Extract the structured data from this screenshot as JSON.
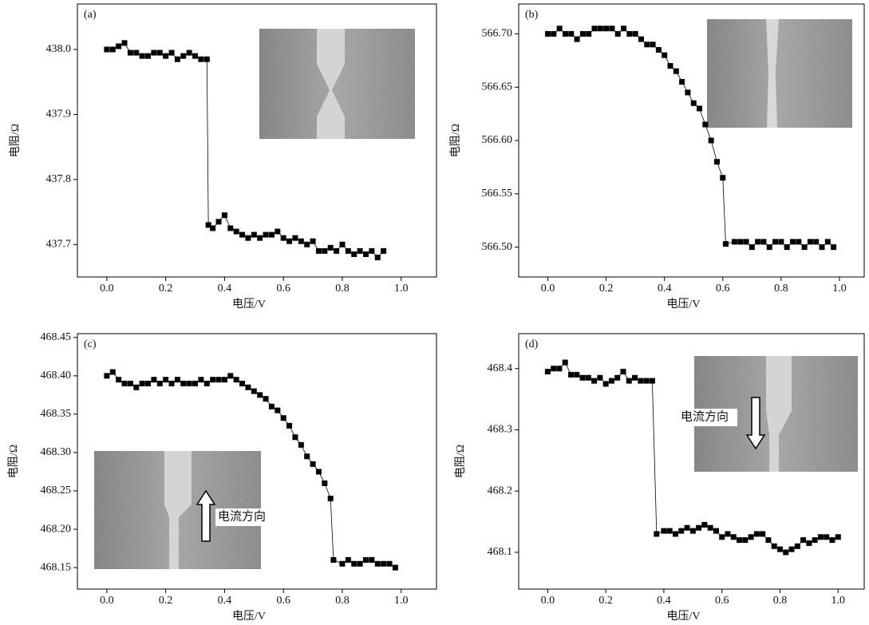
{
  "chart_data": [
    {
      "type": "scatter",
      "label": "(a)",
      "xlabel": "电压/V",
      "ylabel": "电阻/Ω",
      "x": [
        0,
        0.02,
        0.04,
        0.06,
        0.08,
        0.1,
        0.12,
        0.14,
        0.16,
        0.18,
        0.2,
        0.22,
        0.24,
        0.26,
        0.28,
        0.3,
        0.32,
        0.34,
        0.345,
        0.36,
        0.38,
        0.4,
        0.42,
        0.44,
        0.46,
        0.48,
        0.5,
        0.52,
        0.54,
        0.56,
        0.58,
        0.6,
        0.62,
        0.64,
        0.66,
        0.68,
        0.7,
        0.72,
        0.74,
        0.76,
        0.78,
        0.8,
        0.82,
        0.84,
        0.86,
        0.88,
        0.9,
        0.92,
        0.94
      ],
      "values": [
        438.0,
        438.0,
        438.005,
        438.01,
        437.995,
        437.995,
        437.99,
        437.99,
        437.995,
        437.995,
        437.99,
        437.995,
        437.985,
        437.99,
        437.995,
        437.99,
        437.985,
        437.985,
        437.73,
        437.725,
        437.735,
        437.745,
        437.725,
        437.72,
        437.715,
        437.71,
        437.715,
        437.71,
        437.715,
        437.715,
        437.72,
        437.71,
        437.705,
        437.71,
        437.705,
        437.7,
        437.705,
        437.69,
        437.69,
        437.695,
        437.69,
        437.7,
        437.69,
        437.685,
        437.69,
        437.685,
        437.69,
        437.68,
        437.69
      ],
      "color": "#000000",
      "xlim": [
        -0.1,
        1.12
      ],
      "ylim": [
        437.65,
        438.07
      ],
      "xticks": [
        {
          "value": 0,
          "label": "0.0"
        },
        0.2,
        0.4,
        0.6,
        0.8,
        {
          "value": 1,
          "label": "1.0"
        }
      ],
      "yticks": [
        437.7,
        437.8,
        437.9,
        {
          "value": 438,
          "label": "438.0"
        }
      ]
    },
    {
      "type": "scatter",
      "label": "(b)",
      "xlabel": "电压/V",
      "ylabel": "电阻/Ω",
      "x": [
        0,
        0.02,
        0.04,
        0.06,
        0.08,
        0.1,
        0.12,
        0.14,
        0.16,
        0.18,
        0.2,
        0.22,
        0.24,
        0.26,
        0.28,
        0.3,
        0.32,
        0.34,
        0.36,
        0.38,
        0.4,
        0.42,
        0.44,
        0.46,
        0.48,
        0.5,
        0.52,
        0.54,
        0.56,
        0.58,
        0.6,
        0.61,
        0.64,
        0.66,
        0.68,
        0.7,
        0.72,
        0.74,
        0.76,
        0.78,
        0.8,
        0.82,
        0.84,
        0.86,
        0.88,
        0.9,
        0.92,
        0.94,
        0.96,
        0.98
      ],
      "values": [
        566.7,
        566.7,
        566.705,
        566.7,
        566.7,
        566.695,
        566.7,
        566.7,
        566.705,
        566.705,
        566.705,
        566.705,
        566.7,
        566.705,
        566.7,
        566.7,
        566.695,
        566.69,
        566.69,
        566.685,
        566.68,
        566.67,
        566.665,
        566.655,
        566.645,
        566.635,
        566.63,
        566.615,
        566.6,
        566.58,
        566.565,
        566.503,
        566.505,
        566.505,
        566.505,
        566.5,
        566.505,
        566.505,
        566.5,
        566.505,
        566.505,
        566.5,
        566.505,
        566.505,
        566.5,
        566.505,
        566.505,
        566.5,
        566.505,
        566.5
      ],
      "color": "#000000",
      "xlim": [
        -0.1,
        1.085
      ],
      "ylim": [
        566.472,
        566.728
      ],
      "xticks": [
        {
          "value": 0,
          "label": "0.0"
        },
        0.2,
        0.4,
        0.6,
        0.8,
        {
          "value": 1,
          "label": "1.0"
        }
      ],
      "yticks": [
        {
          "value": 566.5,
          "label": "566.50"
        },
        566.55,
        {
          "value": 566.6,
          "label": "566.60"
        },
        566.65,
        {
          "value": 566.7,
          "label": "566.70"
        }
      ]
    },
    {
      "type": "scatter",
      "label": "(c)",
      "xlabel": "电压/V",
      "ylabel": "电阻/Ω",
      "annotation": "电流方向",
      "x": [
        0,
        0.02,
        0.04,
        0.06,
        0.08,
        0.1,
        0.12,
        0.14,
        0.16,
        0.18,
        0.2,
        0.22,
        0.24,
        0.26,
        0.28,
        0.3,
        0.32,
        0.34,
        0.36,
        0.38,
        0.4,
        0.42,
        0.44,
        0.46,
        0.48,
        0.5,
        0.52,
        0.54,
        0.56,
        0.58,
        0.6,
        0.62,
        0.64,
        0.66,
        0.68,
        0.7,
        0.72,
        0.74,
        0.76,
        0.77,
        0.8,
        0.82,
        0.84,
        0.86,
        0.88,
        0.9,
        0.92,
        0.94,
        0.96,
        0.98
      ],
      "values": [
        468.4,
        468.405,
        468.395,
        468.39,
        468.39,
        468.385,
        468.39,
        468.39,
        468.395,
        468.39,
        468.395,
        468.39,
        468.395,
        468.39,
        468.39,
        468.39,
        468.395,
        468.39,
        468.395,
        468.395,
        468.395,
        468.4,
        468.395,
        468.39,
        468.385,
        468.38,
        468.375,
        468.37,
        468.36,
        468.355,
        468.345,
        468.335,
        468.32,
        468.31,
        468.295,
        468.285,
        468.275,
        468.26,
        468.24,
        468.16,
        468.155,
        468.16,
        468.155,
        468.155,
        468.16,
        468.16,
        468.155,
        468.155,
        468.155,
        468.15
      ],
      "color": "#000000",
      "xlim": [
        -0.1,
        1.12
      ],
      "ylim": [
        468.122,
        468.455
      ],
      "xticks": [
        {
          "value": 0,
          "label": "0.0"
        },
        0.2,
        0.4,
        0.6,
        0.8,
        {
          "value": 1,
          "label": "1.0"
        }
      ],
      "yticks": [
        468.15,
        {
          "value": 468.2,
          "label": "468.20"
        },
        468.25,
        {
          "value": 468.3,
          "label": "468.30"
        },
        468.35,
        {
          "value": 468.4,
          "label": "468.40"
        },
        468.45
      ]
    },
    {
      "type": "scatter",
      "label": "(d)",
      "xlabel": "电压/V",
      "ylabel": "电阻/Ω",
      "annotation": "电流方向",
      "x": [
        0,
        0.02,
        0.04,
        0.06,
        0.08,
        0.1,
        0.12,
        0.14,
        0.16,
        0.18,
        0.2,
        0.22,
        0.24,
        0.26,
        0.28,
        0.3,
        0.32,
        0.34,
        0.36,
        0.375,
        0.4,
        0.42,
        0.44,
        0.46,
        0.48,
        0.5,
        0.52,
        0.54,
        0.56,
        0.58,
        0.6,
        0.62,
        0.64,
        0.66,
        0.68,
        0.7,
        0.72,
        0.74,
        0.76,
        0.78,
        0.8,
        0.82,
        0.84,
        0.86,
        0.88,
        0.9,
        0.92,
        0.94,
        0.96,
        0.98,
        1.0
      ],
      "values": [
        468.395,
        468.4,
        468.4,
        468.41,
        468.39,
        468.39,
        468.385,
        468.385,
        468.38,
        468.385,
        468.375,
        468.38,
        468.385,
        468.395,
        468.38,
        468.385,
        468.38,
        468.38,
        468.38,
        468.13,
        468.135,
        468.135,
        468.13,
        468.135,
        468.14,
        468.135,
        468.14,
        468.145,
        468.14,
        468.135,
        468.125,
        468.13,
        468.125,
        468.12,
        468.12,
        468.125,
        468.13,
        468.13,
        468.12,
        468.11,
        468.105,
        468.1,
        468.105,
        468.11,
        468.12,
        468.115,
        468.12,
        468.125,
        468.125,
        468.12,
        468.125
      ],
      "color": "#000000",
      "xlim": [
        -0.1,
        1.09
      ],
      "ylim": [
        468.04,
        468.457
      ],
      "xticks": [
        {
          "value": 0,
          "label": "0.0"
        },
        0.2,
        0.4,
        0.6,
        0.8,
        {
          "value": 1,
          "label": "1.0"
        }
      ],
      "yticks": [
        468.1,
        468.2,
        468.3,
        468.4
      ]
    }
  ]
}
